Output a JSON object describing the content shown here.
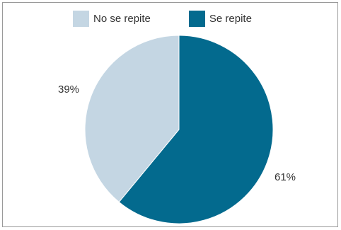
{
  "chart_data": {
    "type": "pie",
    "title": "",
    "legend_position": "top",
    "slices": [
      {
        "name": "Se repite",
        "value": 61,
        "label": "61%",
        "color": "#036a8e"
      },
      {
        "name": "No se repite",
        "value": 39,
        "label": "39%",
        "color": "#c4d6e3"
      }
    ],
    "legend": [
      {
        "label": "No se repite",
        "color": "#c4d6e3"
      },
      {
        "label": "Se repite",
        "color": "#036a8e"
      }
    ]
  }
}
